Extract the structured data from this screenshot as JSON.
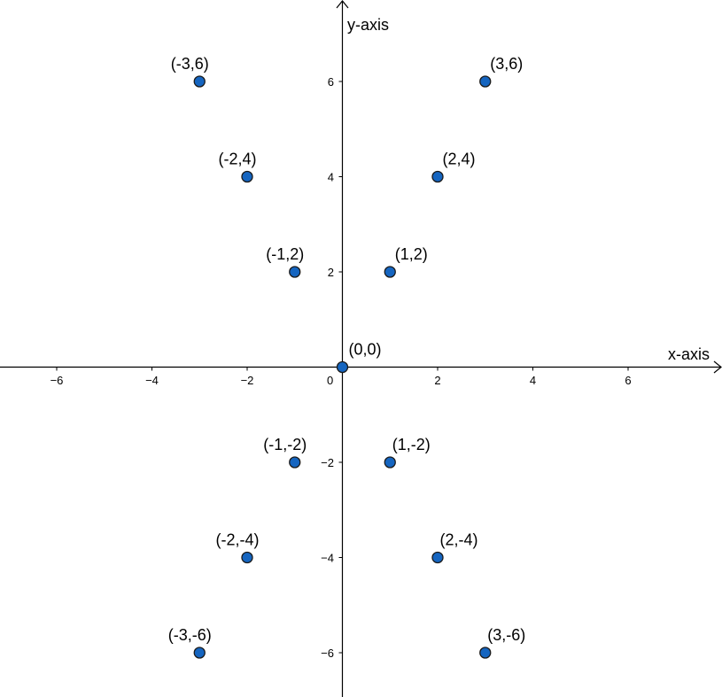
{
  "chart_data": {
    "type": "scatter",
    "title": "",
    "xlabel": "x-axis",
    "ylabel": "y-axis",
    "xlim": [
      -7.2,
      7.9
    ],
    "ylim": [
      -6.9,
      7.6
    ],
    "grid": false,
    "x_ticks": [
      {
        "value": -6,
        "label": "−6"
      },
      {
        "value": -4,
        "label": "−4"
      },
      {
        "value": -2,
        "label": "−2"
      },
      {
        "value": 2,
        "label": "2"
      },
      {
        "value": 4,
        "label": "4"
      },
      {
        "value": 6,
        "label": "6"
      }
    ],
    "y_ticks": [
      {
        "value": 6,
        "label": "6"
      },
      {
        "value": 4,
        "label": "4"
      },
      {
        "value": 2,
        "label": "2"
      },
      {
        "value": -2,
        "label": "−2"
      },
      {
        "value": -4,
        "label": "−4"
      },
      {
        "value": -6,
        "label": "−6"
      }
    ],
    "origin_label": "0",
    "point_color": "#1565c0",
    "point_stroke": "#1a1a1a",
    "points": [
      {
        "x": -3,
        "y": 6,
        "label": "(-3,6)"
      },
      {
        "x": 3,
        "y": 6,
        "label": "(3,6)"
      },
      {
        "x": -2,
        "y": 4,
        "label": "(-2,4)"
      },
      {
        "x": 2,
        "y": 4,
        "label": "(2,4)"
      },
      {
        "x": -1,
        "y": 2,
        "label": "(-1,2)"
      },
      {
        "x": 1,
        "y": 2,
        "label": "(1,2)"
      },
      {
        "x": 0,
        "y": 0,
        "label": "(0,0)"
      },
      {
        "x": -1,
        "y": -2,
        "label": "(-1,-2)"
      },
      {
        "x": 1,
        "y": -2,
        "label": "(1,-2)"
      },
      {
        "x": -2,
        "y": -4,
        "label": "(-2,-4)"
      },
      {
        "x": 2,
        "y": -4,
        "label": "(2,-4)"
      },
      {
        "x": -3,
        "y": -6,
        "label": "(-3,-6)"
      },
      {
        "x": 3,
        "y": -6,
        "label": "(3,-6)"
      }
    ]
  }
}
